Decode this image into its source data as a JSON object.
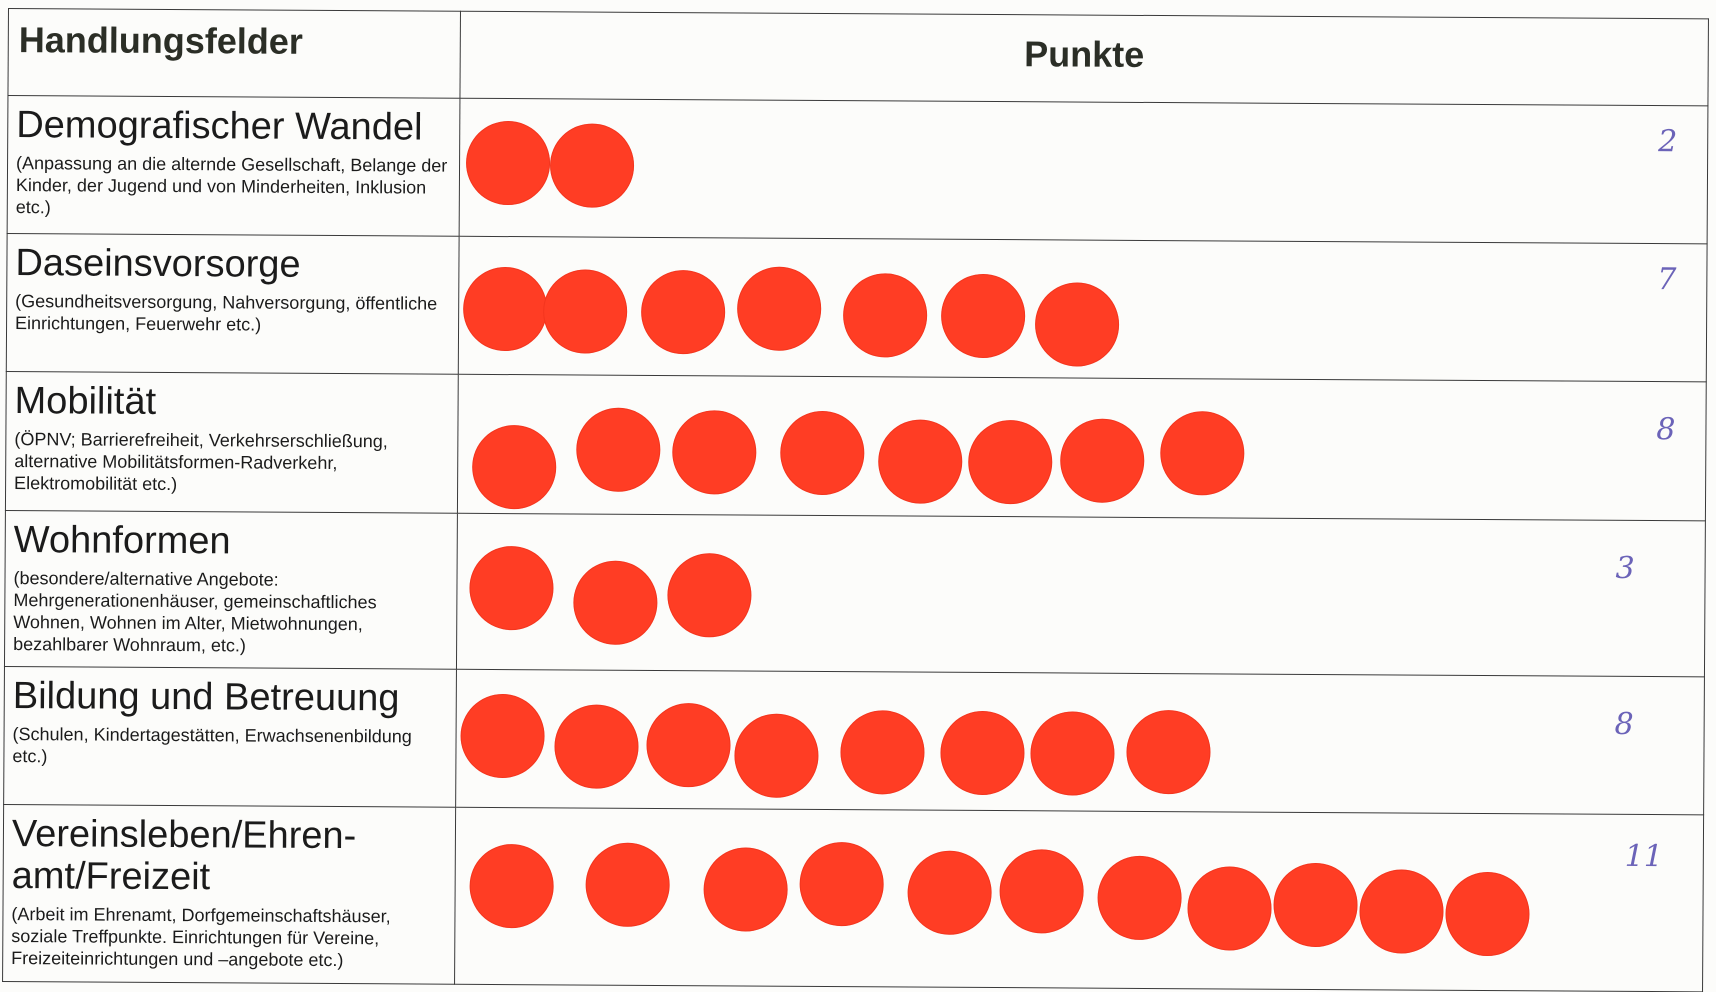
{
  "header": {
    "col_fields": "Handlungsfelder",
    "col_points": "Punkte"
  },
  "rows": [
    {
      "title": "Demografischer Wandel",
      "desc": "(Anpassung an die alternde Gesellschaft, Belange der Kinder, der Jugend und von Minderheiten, Inklusion etc.)",
      "dots": 2,
      "count": "2"
    },
    {
      "title": "Daseinsvorsorge",
      "desc": "(Gesundheitsversorgung, Nahversorgung, öffentliche Einrichtungen, Feuerwehr  etc.)",
      "dots": 7,
      "count": "7"
    },
    {
      "title": "Mobilität",
      "desc": "(ÖPNV; Barrierefreiheit, Verkehrserschließung, alternative Mobilitätsformen-Radverkehr, Elektromobilität etc.)",
      "dots": 8,
      "count": "8"
    },
    {
      "title": "Wohnformen",
      "desc": "(besondere/alternative Angebote: Mehrgenerationenhäuser, gemeinschaftliches Wohnen, Wohnen im Alter, Mietwohnungen, bezahlbarer Wohnraum,  etc.)",
      "dots": 3,
      "count": "3"
    },
    {
      "title": "Bildung und Betreuung",
      "desc": "(Schulen, Kindertagestätten, Erwachsenenbildung etc.)",
      "dots": 8,
      "count": "8"
    },
    {
      "title": "Vereinsleben/Ehren-amt/Freizeit",
      "desc": "(Arbeit im Ehrenamt, Dorfgemeinschaftshäuser, soziale Treffpunkte. Einrichtungen für Vereine, Freizeiteinrichtungen und –angebote etc.)",
      "dots": 11,
      "count": "11"
    }
  ],
  "colors": {
    "dot": "#ff3d24",
    "handwriting": "#6b63b8",
    "header_text": "#2b2e26"
  }
}
